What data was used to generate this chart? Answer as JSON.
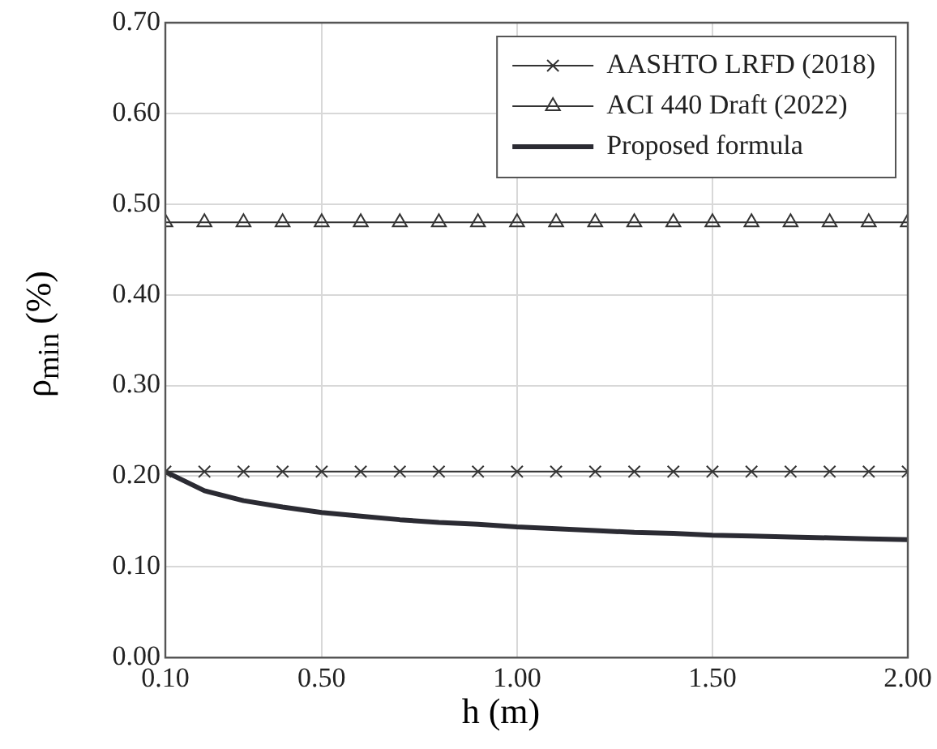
{
  "chart_data": {
    "type": "line",
    "xlabel": "h (m)",
    "ylabel": "ρ$_{min}$ (%)",
    "x": [
      0.1,
      0.2,
      0.3,
      0.4,
      0.5,
      0.6,
      0.7,
      0.8,
      0.9,
      1.0,
      1.1,
      1.2,
      1.3,
      1.4,
      1.5,
      1.6,
      1.7,
      1.8,
      1.9,
      2.0
    ],
    "series": [
      {
        "name": "AASHTO LRFD (2018)",
        "color": "#333333",
        "marker": "cross",
        "values": [
          0.205,
          0.205,
          0.205,
          0.205,
          0.205,
          0.205,
          0.205,
          0.205,
          0.205,
          0.205,
          0.205,
          0.205,
          0.205,
          0.205,
          0.205,
          0.205,
          0.205,
          0.205,
          0.205,
          0.205
        ]
      },
      {
        "name": "ACI 440 Draft (2022)",
        "color": "#333333",
        "marker": "triangle",
        "values": [
          0.48,
          0.48,
          0.48,
          0.48,
          0.48,
          0.48,
          0.48,
          0.48,
          0.48,
          0.48,
          0.48,
          0.48,
          0.48,
          0.48,
          0.48,
          0.48,
          0.48,
          0.48,
          0.48,
          0.48
        ]
      },
      {
        "name": "Proposed formula",
        "color": "#2b2b33",
        "marker": "none",
        "values": [
          0.205,
          0.184,
          0.173,
          0.166,
          0.16,
          0.156,
          0.152,
          0.149,
          0.147,
          0.144,
          0.142,
          0.14,
          0.138,
          0.137,
          0.135,
          0.134,
          0.133,
          0.132,
          0.131,
          0.13
        ]
      }
    ],
    "xlim": [
      0.1,
      2.0
    ],
    "xticks": [
      {
        "value": 0.1,
        "label": "0.10"
      },
      {
        "value": 0.5,
        "label": "0.50"
      },
      {
        "value": 1.0,
        "label": "1.00"
      },
      {
        "value": 1.5,
        "label": "1.50"
      },
      {
        "value": 2.0,
        "label": "2.00"
      }
    ],
    "ylim": [
      0,
      0.7
    ],
    "yticks": [
      {
        "value": 0,
        "label": "0.00"
      },
      {
        "value": 0.1,
        "label": "0.10"
      },
      {
        "value": 0.2,
        "label": "0.20"
      },
      {
        "value": 0.3,
        "label": "0.30"
      },
      {
        "value": 0.4,
        "label": "0.40"
      },
      {
        "value": 0.5,
        "label": "0.50"
      },
      {
        "value": 0.6,
        "label": "0.60"
      },
      {
        "value": 0.7,
        "label": "0.70"
      }
    ],
    "grid": true,
    "legend": "top right"
  }
}
